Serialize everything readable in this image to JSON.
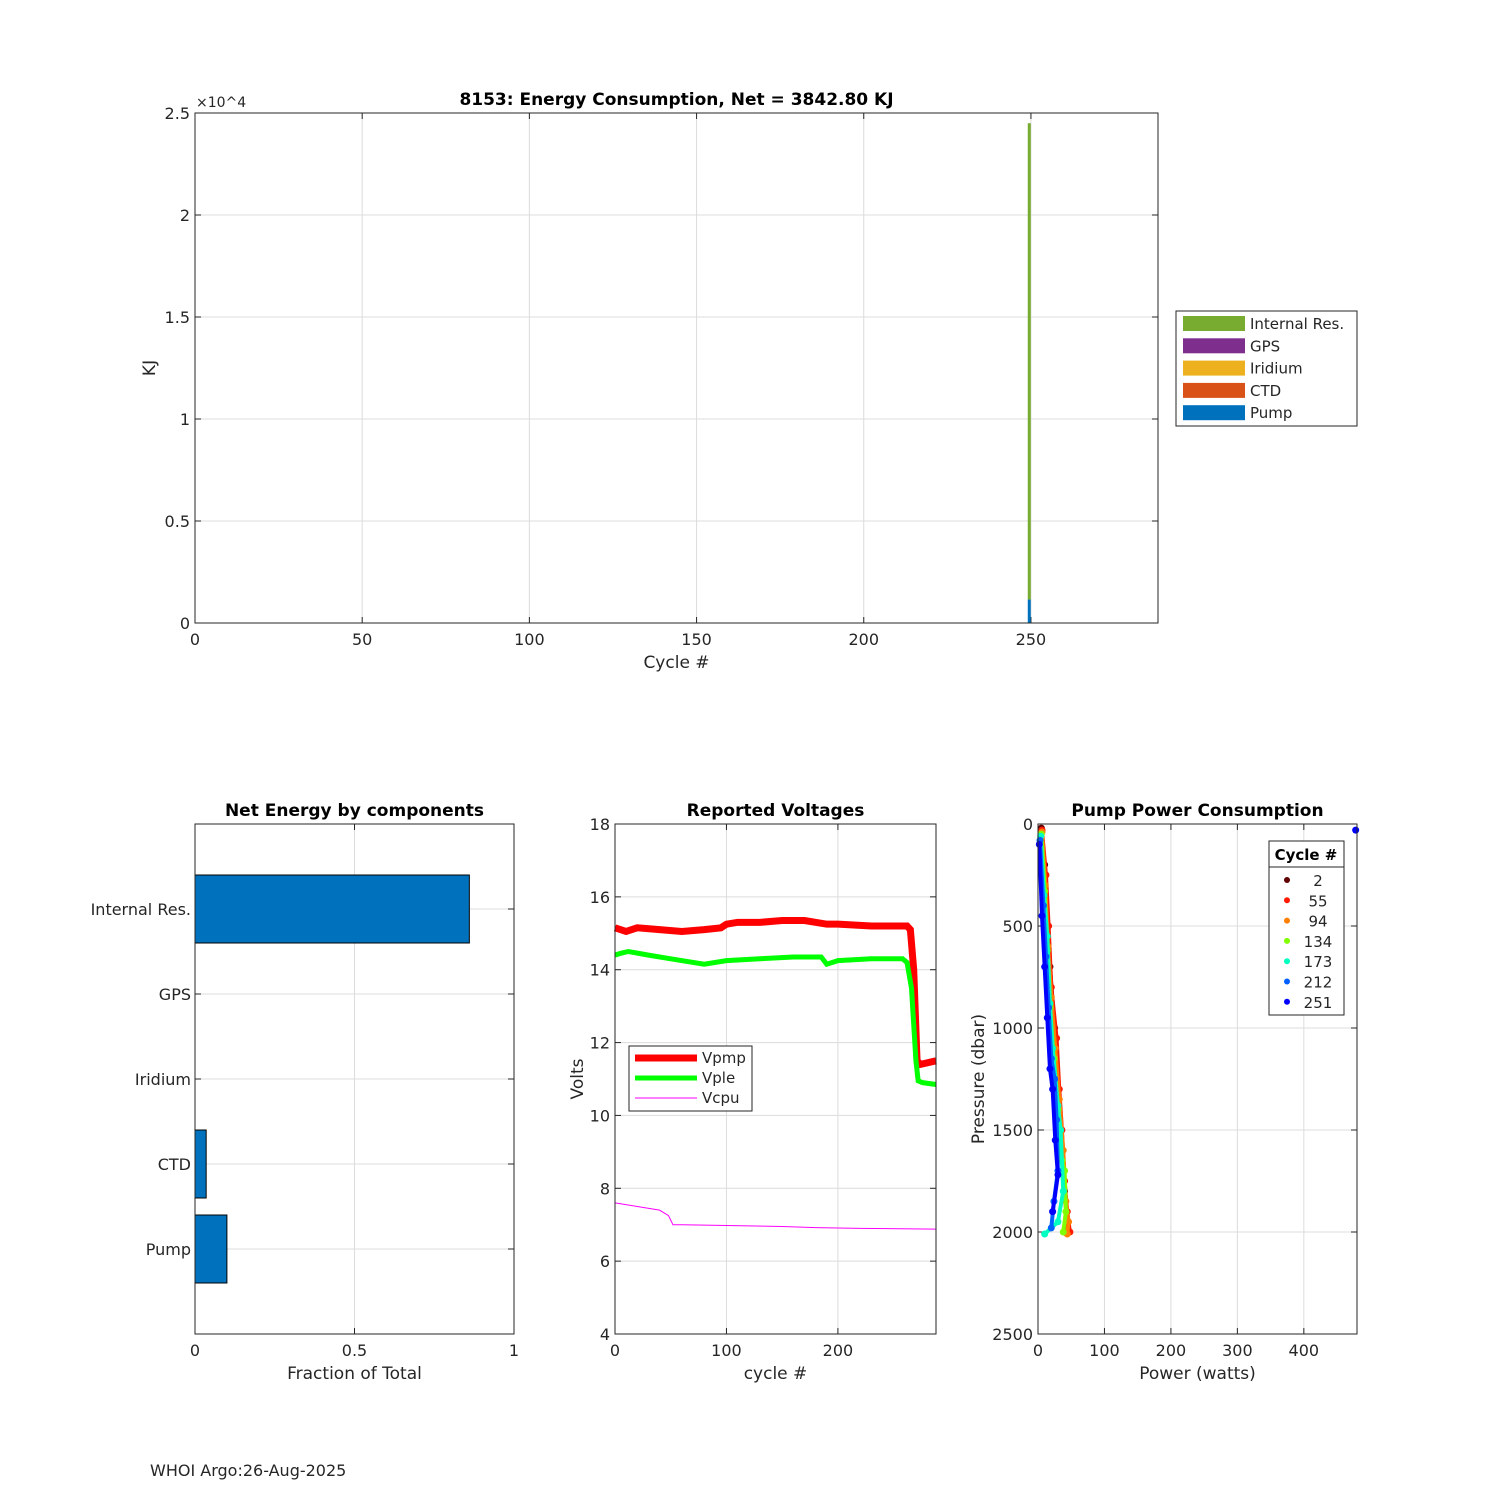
{
  "footer": "WHOI Argo:26-Aug-2025",
  "chart_data": [
    {
      "type": "bar",
      "stacked": true,
      "title": "8153: Energy Consumption,  Net = 3842.80 KJ",
      "xlabel": "Cycle #",
      "ylabel": "KJ",
      "exponent_label": "×10^4",
      "xlim": [
        0,
        288
      ],
      "ylim": [
        0,
        25000
      ],
      "xticks": [
        0,
        50,
        100,
        150,
        200,
        250
      ],
      "yticks": [
        0,
        5000,
        10000,
        15000,
        20000,
        25000
      ],
      "ytick_labels": [
        "0",
        "0.5",
        "1",
        "1.5",
        "2",
        "2.5"
      ],
      "grid": true,
      "legend_position": "outside-right",
      "x": [
        249.5
      ],
      "series": [
        {
          "name": "Pump",
          "color": "#0072bd",
          "values": [
            1150
          ]
        },
        {
          "name": "CTD",
          "color": "#d95319",
          "values": [
            0
          ]
        },
        {
          "name": "Iridium",
          "color": "#edb120",
          "values": [
            0
          ]
        },
        {
          "name": "GPS",
          "color": "#7e2f8e",
          "values": [
            0
          ]
        },
        {
          "name": "Internal Res.",
          "color": "#77ac30",
          "values": [
            23350
          ]
        }
      ]
    },
    {
      "type": "bar",
      "orientation": "horizontal",
      "title": "Net Energy by components",
      "xlabel": "Fraction of Total",
      "xlim": [
        0,
        1
      ],
      "xticks": [
        0,
        0.5,
        1
      ],
      "xtick_labels": [
        "0",
        "0.5",
        "1"
      ],
      "categories": [
        "Internal Res.",
        "GPS",
        "Iridium",
        "CTD",
        "Pump"
      ],
      "values": [
        0.86,
        0,
        0,
        0.035,
        0.1
      ],
      "color": "#0072bd"
    },
    {
      "type": "line",
      "title": "Reported Voltages",
      "xlabel": "cycle #",
      "ylabel": "Volts",
      "xlim": [
        0,
        288
      ],
      "ylim": [
        4,
        18
      ],
      "xticks": [
        0,
        100,
        200
      ],
      "yticks": [
        4,
        6,
        8,
        10,
        12,
        14,
        16,
        18
      ],
      "legend_position": "left-middle",
      "series": [
        {
          "name": "Vpmp",
          "color": "#ff0000",
          "x": [
            0,
            10,
            20,
            40,
            60,
            80,
            95,
            100,
            110,
            130,
            150,
            170,
            190,
            200,
            230,
            250,
            262,
            265,
            268,
            271,
            274,
            288
          ],
          "y": [
            15.15,
            15.05,
            15.15,
            15.1,
            15.05,
            15.1,
            15.15,
            15.25,
            15.3,
            15.3,
            15.35,
            15.35,
            15.25,
            15.25,
            15.2,
            15.2,
            15.2,
            15.1,
            14,
            11.5,
            11.4,
            11.5
          ]
        },
        {
          "name": "Vple",
          "color": "#00ff00",
          "x": [
            0,
            5,
            12,
            30,
            50,
            80,
            100,
            130,
            160,
            185,
            190,
            200,
            230,
            258,
            262,
            266,
            270,
            272,
            276,
            288
          ],
          "y": [
            14.4,
            14.45,
            14.5,
            14.4,
            14.3,
            14.15,
            14.25,
            14.3,
            14.35,
            14.35,
            14.15,
            14.25,
            14.3,
            14.3,
            14.2,
            13.5,
            11.5,
            10.95,
            10.9,
            10.85
          ]
        },
        {
          "name": "Vcpu",
          "color": "#ff00ff",
          "x": [
            0,
            20,
            40,
            48,
            52,
            60,
            100,
            150,
            180,
            220,
            288
          ],
          "y": [
            7.6,
            7.5,
            7.4,
            7.25,
            7.0,
            7.0,
            6.98,
            6.95,
            6.92,
            6.9,
            6.88
          ]
        }
      ]
    },
    {
      "type": "scatter",
      "title": "Pump Power Consumption",
      "xlabel": "Power (watts)",
      "ylabel": "Pressure (dbar)",
      "xlim": [
        0,
        480
      ],
      "ylim": [
        2500,
        0
      ],
      "xticks": [
        0,
        100,
        200,
        300,
        400
      ],
      "yticks": [
        0,
        500,
        1000,
        1500,
        2000,
        2500
      ],
      "legend_title": "Cycle #",
      "legend_position": "top-right",
      "series": [
        {
          "name": "2",
          "color": "#600000",
          "x": [
            5,
            10,
            12,
            18,
            25,
            28,
            30,
            35,
            40,
            45
          ],
          "y": [
            20,
            200,
            400,
            700,
            1000,
            1200,
            1400,
            1600,
            1800,
            2000
          ]
        },
        {
          "name": "55",
          "color": "#ff1a00",
          "x": [
            6,
            12,
            16,
            20,
            28,
            32,
            36,
            40,
            44,
            48
          ],
          "y": [
            30,
            250,
            500,
            800,
            1050,
            1300,
            1500,
            1750,
            1900,
            2000
          ]
        },
        {
          "name": "94",
          "color": "#ff8000",
          "x": [
            6,
            11,
            15,
            20,
            26,
            32,
            38,
            42,
            46,
            44
          ],
          "y": [
            40,
            300,
            600,
            850,
            1100,
            1350,
            1600,
            1850,
            1950,
            2010
          ]
        },
        {
          "name": "134",
          "color": "#80ff00",
          "x": [
            5,
            10,
            14,
            18,
            24,
            30,
            36,
            40,
            42,
            38
          ],
          "y": [
            50,
            330,
            620,
            900,
            1150,
            1400,
            1650,
            1700,
            1900,
            2000
          ]
        },
        {
          "name": "173",
          "color": "#00ffc0",
          "x": [
            4,
            9,
            14,
            18,
            22,
            30,
            34,
            38,
            30,
            10
          ],
          "y": [
            60,
            350,
            550,
            880,
            1100,
            1380,
            1500,
            1800,
            1950,
            2010
          ]
        },
        {
          "name": "212",
          "color": "#0060ff",
          "x": [
            3,
            8,
            12,
            16,
            20,
            25,
            28,
            30,
            24,
            20
          ],
          "y": [
            80,
            400,
            650,
            900,
            1150,
            1250,
            1450,
            1700,
            1850,
            1980
          ]
        },
        {
          "name": "251",
          "color": "#0000ff",
          "x": [
            2,
            6,
            10,
            14,
            18,
            22,
            26,
            30,
            22,
            478
          ],
          "y": [
            100,
            450,
            700,
            950,
            1200,
            1300,
            1550,
            1720,
            1900,
            30
          ]
        }
      ]
    }
  ]
}
